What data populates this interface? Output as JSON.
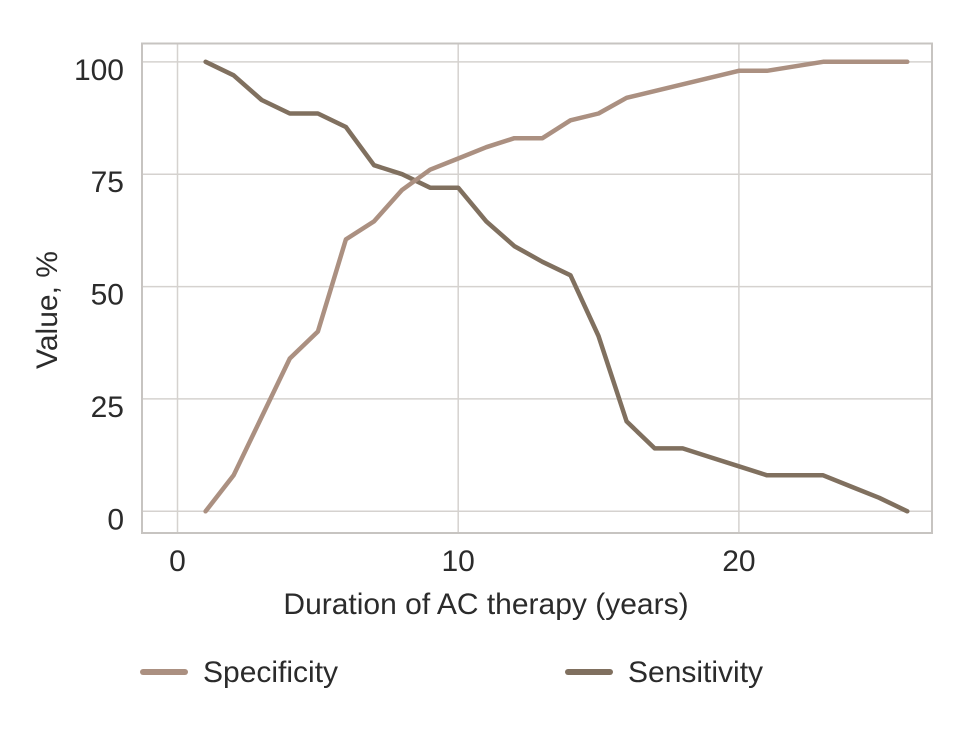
{
  "figure": {
    "background": "#ffffff",
    "text_color": "#2b2b2b",
    "grid_color": "#d5d2cf",
    "border_color": "#c7c4c1"
  },
  "chart_data": {
    "type": "line",
    "title": "",
    "xlabel": "Duration of AC therapy (years)",
    "ylabel": "Value, %",
    "x": [
      1,
      2,
      3,
      4,
      5,
      6,
      7,
      8,
      9,
      10,
      11,
      12,
      13,
      14,
      15,
      16,
      17,
      18,
      19,
      20,
      21,
      22,
      23,
      24,
      25,
      26
    ],
    "series": [
      {
        "name": "Specificity",
        "color": "#ab9081",
        "values": [
          0,
          8,
          21,
          34,
          40,
          60.5,
          64.5,
          71.5,
          76,
          78.5,
          81,
          83,
          83,
          87,
          88.5,
          92,
          93.5,
          95,
          96.5,
          98,
          98,
          99,
          100,
          100,
          100,
          100
        ]
      },
      {
        "name": "Sensitivity",
        "color": "#80705f",
        "values": [
          100,
          97,
          91.5,
          88.5,
          88.5,
          85.5,
          77,
          75,
          72,
          72,
          64.5,
          59,
          55.5,
          52.5,
          39,
          20,
          14,
          14,
          12,
          10,
          8,
          8,
          8,
          5.5,
          3,
          0
        ]
      }
    ],
    "x_ticks": [
      "0",
      "10",
      "20"
    ],
    "x_tick_values": [
      0,
      10,
      20
    ],
    "y_ticks": [
      "0",
      "25",
      "50",
      "75",
      "100"
    ],
    "y_tick_values": [
      0,
      25,
      50,
      75,
      100
    ],
    "xlim": [
      -1.265,
      26.88
    ],
    "ylim": [
      -4.83,
      104.08
    ],
    "grid": true,
    "legend_position": "bottom"
  }
}
